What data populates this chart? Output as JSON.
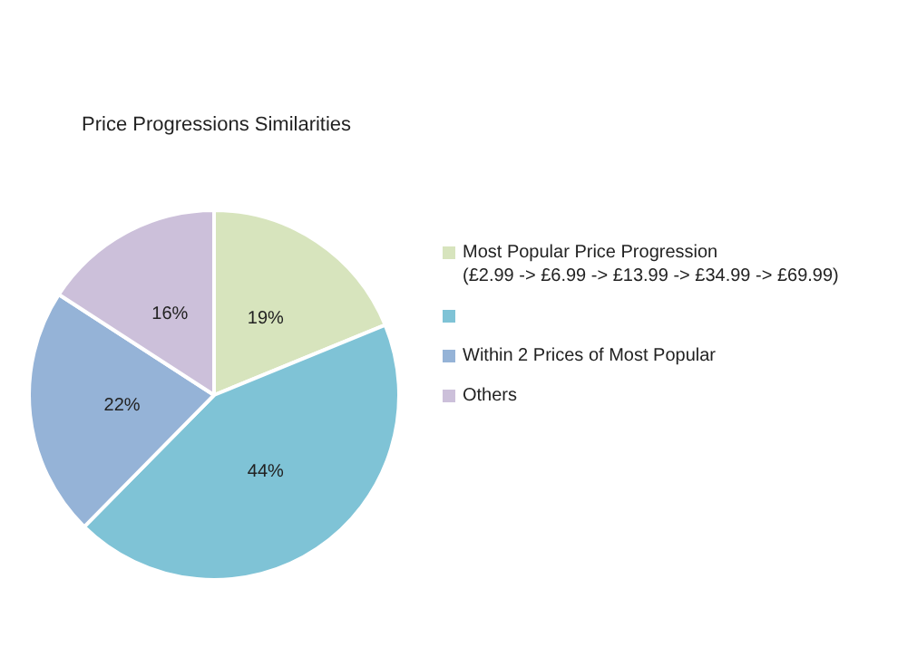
{
  "chart_data": {
    "type": "pie",
    "title": "Price Progressions  Similarities",
    "categories": [
      "Most Popular Price Progression (£2.99 -> £6.99 -> £13.99 -> £34.99 -> £69.99)",
      null,
      "Within 2 Prices of Most Popular",
      "Others"
    ],
    "values": [
      19,
      44,
      22,
      16
    ],
    "colors": [
      "#d7e4bd",
      "#7fc3d6",
      "#95b3d7",
      "#ccc0da"
    ],
    "value_labels": [
      "19%",
      "44%",
      "22%",
      "16%"
    ],
    "legend": "right"
  }
}
